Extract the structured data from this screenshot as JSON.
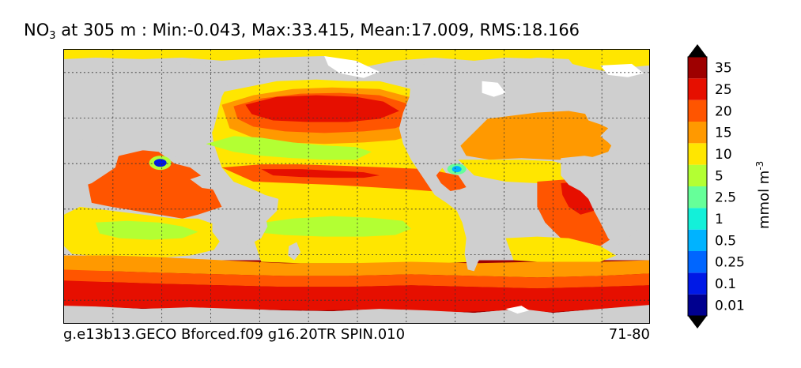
{
  "title": {
    "prefix": "NO",
    "subscript": "3",
    "rest": " at 305 m : Min:-0.043, Max:33.415, Mean:17.009, RMS:18.166"
  },
  "footer": {
    "left": "g.e13b13.GECO Bforced.f09 g16.20TR SPIN.010",
    "right": "71-80"
  },
  "colorbar": {
    "units_text": "mmol m",
    "units_superscript": "-3",
    "levels": [
      {
        "label": "0.01",
        "color": "#00008f"
      },
      {
        "label": "0.1",
        "color": "#0019e6"
      },
      {
        "label": "0.25",
        "color": "#0066ff"
      },
      {
        "label": "0.5",
        "color": "#00b3ff"
      },
      {
        "label": "1",
        "color": "#13f0d9"
      },
      {
        "label": "2.5",
        "color": "#66ff99"
      },
      {
        "label": "5",
        "color": "#b3ff33"
      },
      {
        "label": "10",
        "color": "#ffe600"
      },
      {
        "label": "15",
        "color": "#ff9900"
      },
      {
        "label": "20",
        "color": "#ff5500"
      },
      {
        "label": "25",
        "color": "#e60f00"
      },
      {
        "label": "35",
        "color": "#9e0000"
      }
    ],
    "under_color": "#000000",
    "over_color": "#000000"
  },
  "colors": {
    "land": "#cfcfcf",
    "sea_ice": "#ffffff",
    "grid": "#333333"
  },
  "chart_data": {
    "type": "heatmap",
    "title": "NO3 at 305 m : Min:-0.043, Max:33.415, Mean:17.009, RMS:18.166",
    "variable": "NO3",
    "depth_m": 305,
    "stats": {
      "min": -0.043,
      "max": 33.415,
      "mean": 17.009,
      "rms": 18.166
    },
    "units": "mmol m-3",
    "contour_levels": [
      0.01,
      0.1,
      0.25,
      0.5,
      1,
      2.5,
      5,
      10,
      15,
      20,
      25,
      35
    ],
    "extend": "both",
    "grid": true,
    "colorbar_position": "right"
  }
}
